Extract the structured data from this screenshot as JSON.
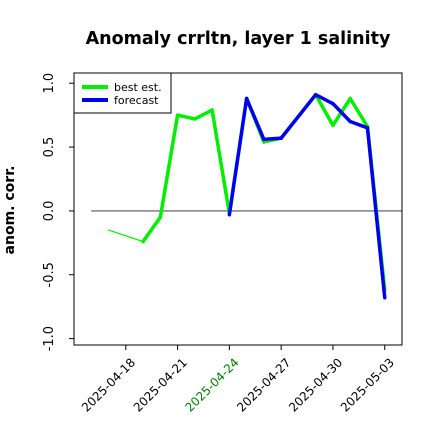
{
  "chart_data": {
    "type": "line",
    "title": "Anomaly crrltn, layer 1 salinity",
    "ylabel": "anom. corr.",
    "xlabel": "",
    "ylim": [
      -1.05,
      1.08
    ],
    "xlim": [
      "2025-04-15",
      "2025-05-04"
    ],
    "grid": false,
    "legend_position": "top-left",
    "yticks": [
      "1.0",
      "0.5",
      "0.0",
      "-0.5",
      "-1.0"
    ],
    "xticks": [
      {
        "date": "2025-04-18",
        "label": "2025-04-18",
        "color": "#000000"
      },
      {
        "date": "2025-04-21",
        "label": "2025-04-21",
        "color": "#000000"
      },
      {
        "date": "2025-04-24",
        "label": "2025-04-24",
        "color": "#008000"
      },
      {
        "date": "2025-04-27",
        "label": "2025-04-27",
        "color": "#000000"
      },
      {
        "date": "2025-04-30",
        "label": "2025-04-30",
        "color": "#000000"
      },
      {
        "date": "2025-05-03",
        "label": "2025-05-03",
        "color": "#000000"
      }
    ],
    "reference_line": {
      "y": 0,
      "color": "#555555"
    },
    "series": [
      {
        "name": "best est.",
        "color": "#00ee00",
        "points": [
          {
            "x": "2025-04-17",
            "y": -0.15
          },
          {
            "x": "2025-04-19",
            "y": -0.24
          },
          {
            "x": "2025-04-20",
            "y": -0.05
          },
          {
            "x": "2025-04-21",
            "y": 0.75
          },
          {
            "x": "2025-04-22",
            "y": 0.72
          },
          {
            "x": "2025-04-23",
            "y": 0.79
          },
          {
            "x": "2025-04-24",
            "y": -0.02
          },
          {
            "x": "2025-04-25",
            "y": 0.88
          },
          {
            "x": "2025-04-26",
            "y": 0.54
          },
          {
            "x": "2025-04-27",
            "y": 0.57
          },
          {
            "x": "2025-04-29",
            "y": 0.91
          },
          {
            "x": "2025-04-30",
            "y": 0.67
          },
          {
            "x": "2025-05-01",
            "y": 0.88
          },
          {
            "x": "2025-05-02",
            "y": 0.66
          },
          {
            "x": "2025-05-03",
            "y": -0.62
          }
        ]
      },
      {
        "name": "forecast",
        "color": "#0000ee",
        "points": [
          {
            "x": "2025-04-24",
            "y": -0.03
          },
          {
            "x": "2025-04-25",
            "y": 0.88
          },
          {
            "x": "2025-04-26",
            "y": 0.56
          },
          {
            "x": "2025-04-27",
            "y": 0.57
          },
          {
            "x": "2025-04-29",
            "y": 0.91
          },
          {
            "x": "2025-04-30",
            "y": 0.84
          },
          {
            "x": "2025-05-01",
            "y": 0.7
          },
          {
            "x": "2025-05-02",
            "y": 0.65
          },
          {
            "x": "2025-05-03",
            "y": -0.68
          }
        ]
      }
    ]
  }
}
